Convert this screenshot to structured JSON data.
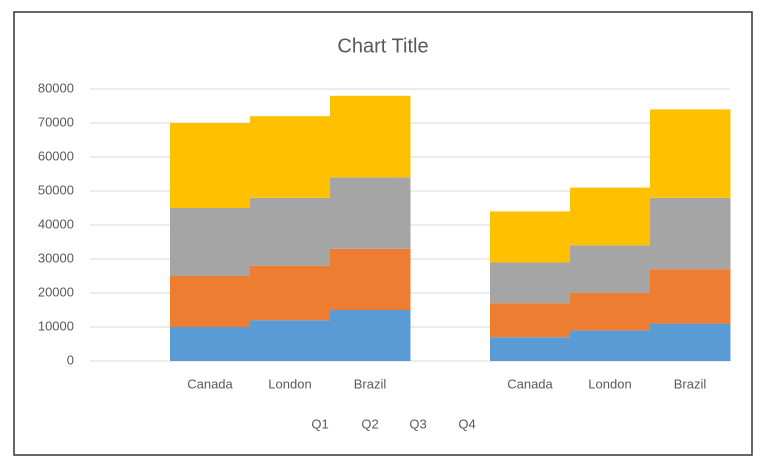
{
  "chart_data": {
    "type": "stacked-step-area",
    "title": "Chart Title",
    "categories": [
      null,
      "Canada",
      "London",
      "Brazil",
      null,
      "Canada",
      "London",
      "Brazil"
    ],
    "series": [
      {
        "name": "Q1",
        "color": "#5b9bd5",
        "values": [
          null,
          10000,
          12000,
          15000,
          null,
          7000,
          9000,
          11000
        ]
      },
      {
        "name": "Q2",
        "color": "#ed7d31",
        "values": [
          null,
          15000,
          16000,
          18000,
          null,
          10000,
          11000,
          16000
        ]
      },
      {
        "name": "Q3",
        "color": "#a5a5a5",
        "values": [
          null,
          20000,
          20000,
          21000,
          null,
          12000,
          14000,
          21000
        ]
      },
      {
        "name": "Q4",
        "color": "#ffc000",
        "values": [
          null,
          25000,
          24000,
          24000,
          null,
          15000,
          17000,
          26000
        ]
      }
    ],
    "ylim": [
      0,
      80000
    ],
    "yticks": [
      0,
      10000,
      20000,
      30000,
      40000,
      50000,
      60000,
      70000,
      80000
    ],
    "grid": true,
    "legend": "bottom"
  }
}
